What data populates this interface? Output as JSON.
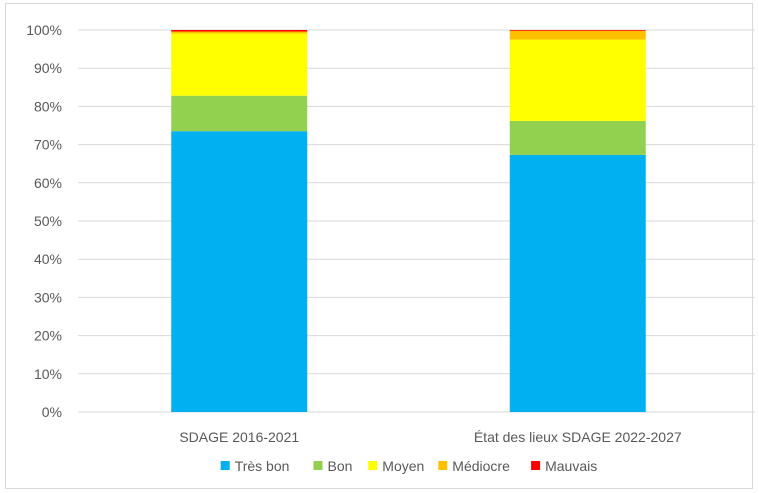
{
  "chart_data": {
    "type": "bar",
    "stacked": true,
    "categories": [
      "SDAGE 2016-2021",
      "État des lieux SDAGE 2022-2027"
    ],
    "series": [
      {
        "name": "Très bon",
        "color": "#00b0f0",
        "values": [
          73.5,
          67.3
        ]
      },
      {
        "name": "Bon",
        "color": "#92d050",
        "values": [
          9.3,
          8.9
        ]
      },
      {
        "name": "Moyen",
        "color": "#ffff00",
        "values": [
          16.3,
          21.3
        ]
      },
      {
        "name": "Médiocre",
        "color": "#ffc000",
        "values": [
          0.5,
          2.3
        ]
      },
      {
        "name": "Mauvais",
        "color": "#ff0000",
        "values": [
          0.4,
          0.2
        ]
      }
    ],
    "ylim": [
      0,
      100
    ],
    "yticks": [
      "0%",
      "10%",
      "20%",
      "30%",
      "40%",
      "50%",
      "60%",
      "70%",
      "80%",
      "90%",
      "100%"
    ],
    "grid": true,
    "legend_position": "bottom",
    "title": "",
    "xlabel": "",
    "ylabel": ""
  }
}
